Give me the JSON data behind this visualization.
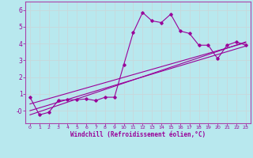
{
  "xlabel": "Windchill (Refroidissement éolien,°C)",
  "bg_color": "#b8e8ee",
  "line_color": "#990099",
  "grid_color": "#c8d8dc",
  "spine_color": "#aa44aa",
  "xlim": [
    -0.5,
    23.5
  ],
  "ylim": [
    -0.75,
    6.5
  ],
  "xticks": [
    0,
    1,
    2,
    3,
    4,
    5,
    6,
    7,
    8,
    9,
    10,
    11,
    12,
    13,
    14,
    15,
    16,
    17,
    18,
    19,
    20,
    21,
    22,
    23
  ],
  "yticks": [
    0,
    1,
    2,
    3,
    4,
    5,
    6
  ],
  "ytick_labels": [
    "-0",
    "1",
    "2",
    "3",
    "4",
    "5",
    "6"
  ],
  "curve1_x": [
    0,
    1,
    2,
    3,
    4,
    5,
    6,
    7,
    8,
    9,
    10,
    11,
    12,
    13,
    14,
    15,
    16,
    17,
    18,
    19,
    20,
    21,
    22,
    23
  ],
  "curve1_y": [
    0.8,
    -0.25,
    -0.1,
    0.6,
    0.65,
    0.65,
    0.7,
    0.6,
    0.8,
    0.8,
    2.75,
    4.65,
    5.85,
    5.35,
    5.25,
    5.75,
    4.75,
    4.6,
    3.9,
    3.9,
    3.1,
    3.9,
    4.1,
    3.9
  ],
  "line1_x": [
    0,
    23
  ],
  "line1_y": [
    -0.25,
    4.1
  ],
  "line2_x": [
    0,
    23
  ],
  "line2_y": [
    0.0,
    3.85
  ],
  "line3_x": [
    0,
    23
  ],
  "line3_y": [
    0.4,
    4.05
  ]
}
